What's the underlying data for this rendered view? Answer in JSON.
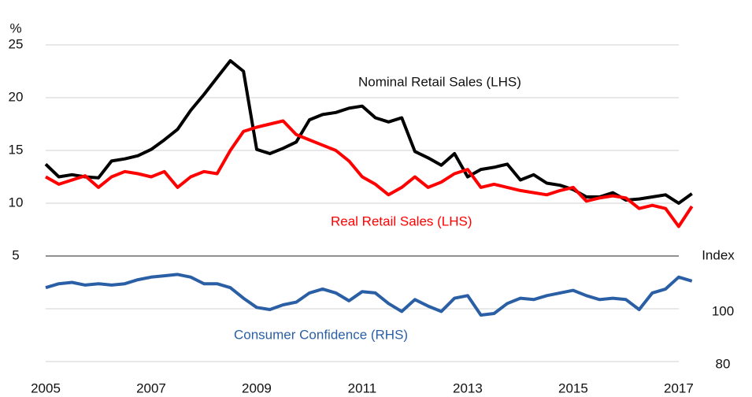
{
  "chart_data": {
    "type": "line",
    "ylabel": "%",
    "y2label": "Index",
    "x": [
      2005,
      2005.25,
      2005.5,
      2005.75,
      2006,
      2006.25,
      2006.5,
      2006.75,
      2007,
      2007.25,
      2007.5,
      2007.75,
      2008,
      2008.25,
      2008.5,
      2008.75,
      2009,
      2009.25,
      2009.5,
      2009.75,
      2010,
      2010.25,
      2010.5,
      2010.75,
      2011,
      2011.25,
      2011.5,
      2011.75,
      2012,
      2012.25,
      2012.5,
      2012.75,
      2013,
      2013.25,
      2013.5,
      2013.75,
      2014,
      2014.25,
      2014.5,
      2014.75,
      2015,
      2015.25,
      2015.5,
      2015.75,
      2016,
      2016.25,
      2016.5,
      2016.75,
      2017,
      2017.25
    ],
    "xlim": [
      2005,
      2017.3
    ],
    "xticks": [
      2005,
      2007,
      2009,
      2011,
      2013,
      2015,
      2017
    ],
    "ylim": [
      -5,
      25
    ],
    "yticks": [
      5,
      10,
      15,
      20,
      25
    ],
    "y2lim": [
      80,
      200
    ],
    "y2ticks": [
      80,
      100
    ],
    "grid": true,
    "series": [
      {
        "name": "Nominal Retail Sales (LHS)",
        "color": "#000000",
        "values": [
          13.7,
          12.5,
          12.7,
          12.5,
          12.4,
          14.0,
          14.2,
          14.5,
          15.1,
          16.0,
          17.0,
          18.8,
          20.3,
          21.9,
          23.5,
          22.5,
          15.1,
          14.7,
          15.2,
          15.8,
          17.9,
          18.4,
          18.6,
          19.0,
          19.2,
          18.1,
          17.7,
          18.1,
          14.9,
          14.3,
          13.6,
          14.7,
          12.5,
          13.2,
          13.4,
          13.7,
          12.2,
          12.7,
          11.9,
          11.7,
          11.3,
          10.6,
          10.6,
          11.0,
          10.3,
          10.4,
          10.6,
          10.8,
          10.0,
          10.9
        ]
      },
      {
        "name": "Real Retail Sales (LHS)",
        "color": "#ff0000",
        "values": [
          12.5,
          11.8,
          12.2,
          12.6,
          11.5,
          12.5,
          13.0,
          12.8,
          12.5,
          13.0,
          11.5,
          12.5,
          13.0,
          12.8,
          15.0,
          16.8,
          17.2,
          17.5,
          17.8,
          16.5,
          16.0,
          15.5,
          15.0,
          14.0,
          12.5,
          11.8,
          10.8,
          11.5,
          12.5,
          11.5,
          12.0,
          12.8,
          13.2,
          11.5,
          11.8,
          11.5,
          11.2,
          11.0,
          10.8,
          11.2,
          11.5,
          10.2,
          10.5,
          10.7,
          10.5,
          9.5,
          9.8,
          9.5,
          7.8,
          9.7
        ]
      },
      {
        "name": "Consumer Confidence (RHS)",
        "color": "#2a5fa5",
        "axis": "y2",
        "values": [
          108,
          109.5,
          110,
          109,
          109.5,
          109,
          109.5,
          111,
          112,
          112.5,
          113,
          112,
          109.5,
          109.5,
          108,
          104,
          100.5,
          99.7,
          101.5,
          102.5,
          106,
          107.5,
          106,
          103,
          106.5,
          106,
          102,
          99,
          103.5,
          101,
          99,
          104,
          105,
          97.6,
          98.2,
          102,
          104,
          103.5,
          105,
          106,
          107,
          105,
          103.5,
          104,
          103.5,
          99.7,
          106,
          107.5,
          112,
          110.5
        ]
      }
    ]
  }
}
